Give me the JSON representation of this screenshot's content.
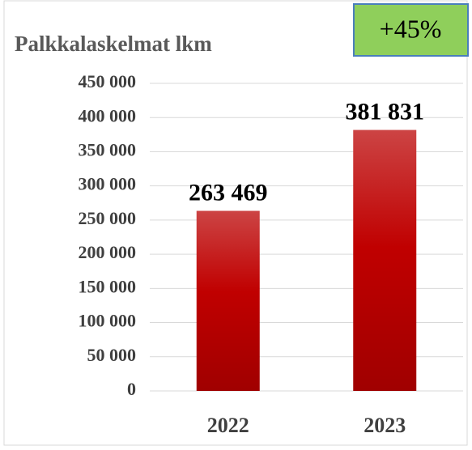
{
  "chart_data": {
    "type": "bar",
    "title": "Palkkalaskelmat lkm",
    "annotation": "+45%",
    "categories": [
      "2022",
      "2023"
    ],
    "values": [
      263469,
      381831
    ],
    "value_labels": [
      "263 469",
      "381 831"
    ],
    "color": "#c00000",
    "ylim": [
      0,
      450000
    ],
    "yticks": [
      0,
      {
        "value": 50000,
        "label": "50 000"
      },
      {
        "value": 100000,
        "label": "100 000"
      },
      {
        "value": 150000,
        "label": "150 000"
      },
      {
        "value": 200000,
        "label": "200 000"
      },
      {
        "value": 250000,
        "label": "250 000"
      },
      {
        "value": 300000,
        "label": "300 000"
      },
      {
        "value": 350000,
        "label": "350 000"
      },
      {
        "value": 400000,
        "label": "400 000"
      },
      {
        "value": 450000,
        "label": "450 000"
      }
    ],
    "grid": true
  }
}
